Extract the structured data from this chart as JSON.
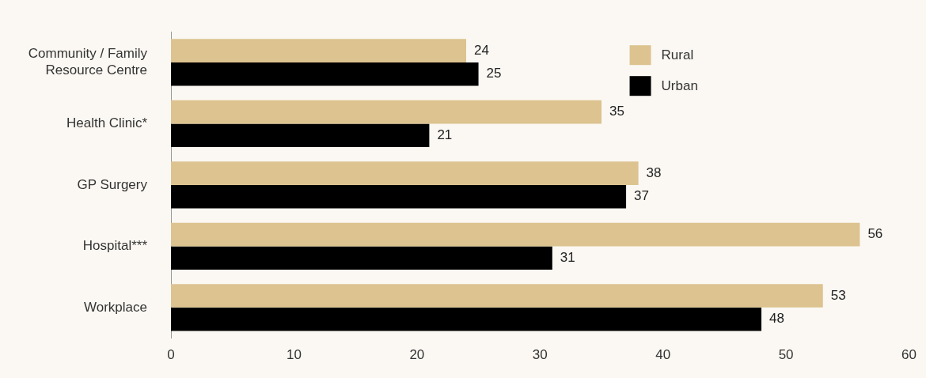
{
  "chart_data": {
    "type": "bar",
    "orientation": "horizontal",
    "categories": [
      "Community / Family Resource Centre",
      "Health Clinic*",
      "GP Surgery",
      "Hospital***",
      "Workplace"
    ],
    "series": [
      {
        "name": "Rural",
        "color": "#dcc38f",
        "values": [
          24,
          35,
          38,
          56,
          53
        ]
      },
      {
        "name": "Urban",
        "color": "#000000",
        "values": [
          25,
          21,
          37,
          31,
          48
        ]
      }
    ],
    "xlim": [
      0,
      60
    ],
    "xticks": [
      0,
      10,
      20,
      30,
      40,
      50,
      60
    ],
    "data_labels": true,
    "legend": "top right",
    "grid": false
  }
}
